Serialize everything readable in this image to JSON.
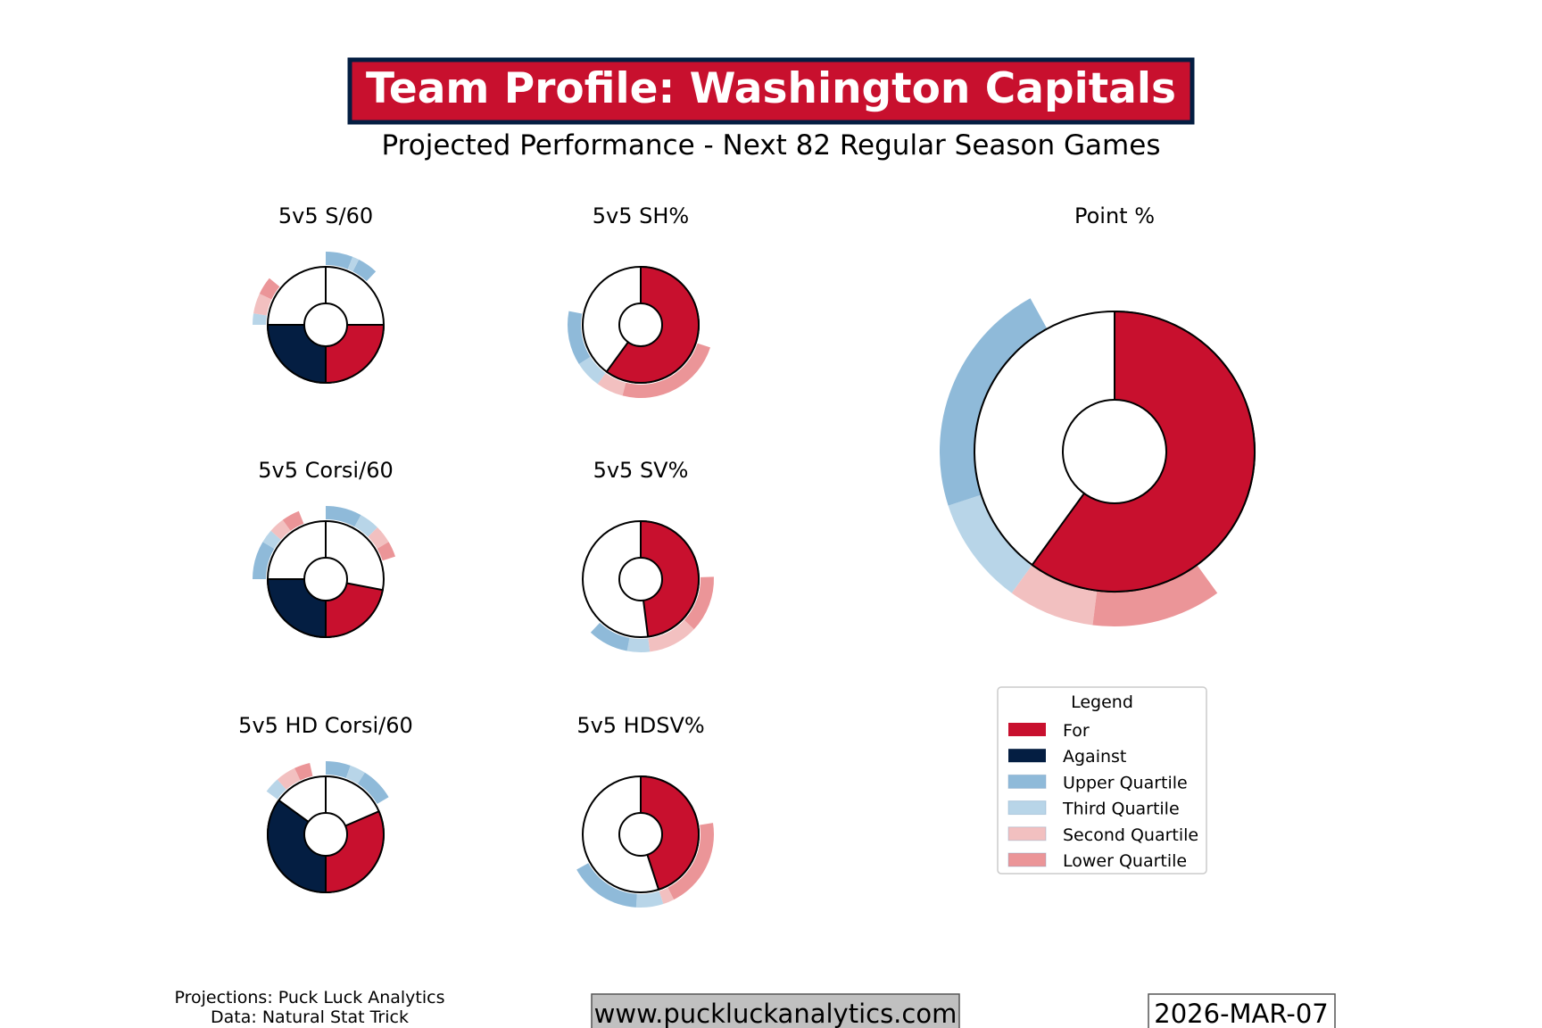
{
  "header": {
    "title": "Team Profile: Washington Capitals",
    "subtitle": "Projected Performance - Next 82 Regular Season Games"
  },
  "colors": {
    "for": "#c8102e",
    "against": "#041e42",
    "upper_quartile": "#8fbad9",
    "third_quartile": "#b8d5e8",
    "second_quartile": "#f2c0c0",
    "lower_quartile": "#eb9598",
    "title_border": "#041e42",
    "website_bg": "#c0c0c0"
  },
  "chart_data": [
    {
      "type": "pie",
      "title": "5v5 S/60",
      "mode": "for_against",
      "for_share": 0.25,
      "against_share": 0.25,
      "outer_ring": [
        {
          "quartile": "upper",
          "share": 0.06
        },
        {
          "quartile": "third",
          "share": 0.015
        },
        {
          "quartile": "upper",
          "share": 0.045
        },
        {
          "quartile": "third",
          "share": 0.025
        },
        {
          "quartile": "second",
          "share": 0.045
        },
        {
          "quartile": "lower",
          "share": 0.04
        }
      ]
    },
    {
      "type": "pie",
      "title": "5v5 SH%",
      "mode": "single",
      "for_share": 0.6,
      "outer_ring": [
        {
          "quartile": "upper",
          "share": 0.12
        },
        {
          "quartile": "third",
          "share": 0.06
        },
        {
          "quartile": "second",
          "share": 0.06
        },
        {
          "quartile": "lower",
          "share": 0.24
        }
      ]
    },
    {
      "type": "pie",
      "title": "5v5 Corsi/60",
      "mode": "for_against",
      "for_share": 0.22,
      "against_share": 0.25,
      "outer_ring": [
        {
          "quartile": "upper",
          "share": 0.08
        },
        {
          "quartile": "third",
          "share": 0.045
        },
        {
          "quartile": "second",
          "share": 0.04
        },
        {
          "quartile": "lower",
          "share": 0.035
        },
        {
          "quartile": "upper",
          "share": 0.085
        },
        {
          "quartile": "third",
          "share": 0.03
        },
        {
          "quartile": "second",
          "share": 0.035
        },
        {
          "quartile": "lower",
          "share": 0.04
        }
      ]
    },
    {
      "type": "pie",
      "title": "5v5 SV%",
      "mode": "single",
      "for_share": 0.48,
      "outer_ring": [
        {
          "quartile": "upper",
          "share": 0.09
        },
        {
          "quartile": "third",
          "share": 0.05
        },
        {
          "quartile": "second",
          "share": 0.11
        },
        {
          "quartile": "lower",
          "share": 0.125
        }
      ]
    },
    {
      "type": "pie",
      "title": "5v5 HD Corsi/60",
      "mode": "for_against",
      "for_share": 0.315,
      "against_share": 0.35,
      "outer_ring": [
        {
          "quartile": "upper",
          "share": 0.055
        },
        {
          "quartile": "third",
          "share": 0.035
        },
        {
          "quartile": "upper",
          "share": 0.075
        },
        {
          "quartile": "third",
          "share": 0.035
        },
        {
          "quartile": "second",
          "share": 0.045
        },
        {
          "quartile": "lower",
          "share": 0.035
        }
      ]
    },
    {
      "type": "pie",
      "title": "5v5 HDSV%",
      "mode": "single",
      "for_share": 0.45,
      "outer_ring": [
        {
          "quartile": "upper",
          "share": 0.16
        },
        {
          "quartile": "third",
          "share": 0.06
        },
        {
          "quartile": "second",
          "share": 0.025
        },
        {
          "quartile": "lower",
          "share": 0.2
        }
      ]
    },
    {
      "type": "pie",
      "title": "Point %",
      "mode": "single",
      "for_share": 0.6,
      "outer_ring": [
        {
          "quartile": "upper",
          "share": 0.22
        },
        {
          "quartile": "third",
          "share": 0.1
        },
        {
          "quartile": "second",
          "share": 0.08
        },
        {
          "quartile": "lower",
          "share": 0.12
        }
      ]
    }
  ],
  "legend": {
    "title": "Legend",
    "items": [
      {
        "label": "For",
        "key": "for"
      },
      {
        "label": "Against",
        "key": "against"
      },
      {
        "label": "Upper Quartile",
        "key": "upper_quartile"
      },
      {
        "label": "Third Quartile",
        "key": "third_quartile"
      },
      {
        "label": "Second Quartile",
        "key": "second_quartile"
      },
      {
        "label": "Lower Quartile",
        "key": "lower_quartile"
      }
    ]
  },
  "footer": {
    "credits_line1": "Projections: Puck Luck Analytics",
    "credits_line2": "Data: Natural Stat Trick",
    "website": "www.puckluckanalytics.com",
    "date": "2026-MAR-07"
  }
}
